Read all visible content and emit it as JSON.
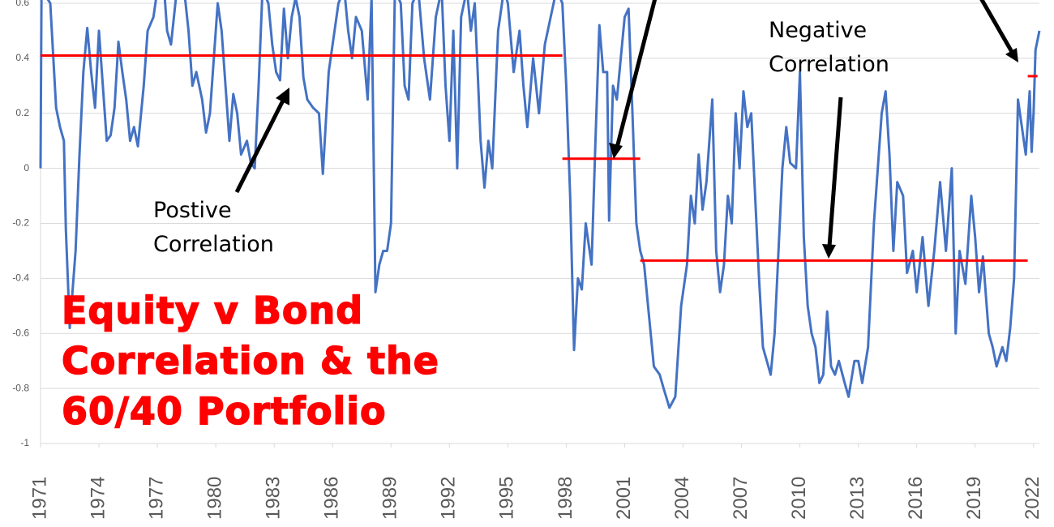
{
  "chart_data": {
    "type": "line",
    "title": "Equity v Bond Correlation & the 60/40 Portfolio",
    "annotations": [
      [
        "Postive",
        "Correlation"
      ],
      [
        "Negative",
        "Correlation"
      ]
    ],
    "xlim": [
      1971,
      2022.3
    ],
    "xticks": [
      1971,
      1974,
      1977,
      1980,
      1983,
      1986,
      1989,
      1992,
      1995,
      1998,
      2001,
      2004,
      2007,
      2010,
      2013,
      2016,
      2019,
      2022
    ],
    "ylim": [
      -1,
      0.6
    ],
    "yticks": [
      -1,
      -0.8,
      -0.6,
      -0.4,
      -0.2,
      0,
      0.2,
      0.4,
      0.6
    ],
    "grid": true,
    "series": [
      {
        "color": "#4472c4",
        "x": [
          1971.0,
          1971.05,
          1971.5,
          1971.8,
          1972.0,
          1972.2,
          1972.3,
          1972.5,
          1972.8,
          1973.0,
          1973.2,
          1973.4,
          1973.6,
          1973.8,
          1974.0,
          1974.2,
          1974.4,
          1974.6,
          1974.8,
          1975.0,
          1975.2,
          1975.4,
          1975.6,
          1975.8,
          1976.0,
          1976.3,
          1976.5,
          1976.8,
          1977.0,
          1977.3,
          1977.5,
          1977.7,
          1978.0,
          1978.3,
          1978.6,
          1978.8,
          1979.0,
          1979.3,
          1979.5,
          1979.7,
          1979.9,
          1980.1,
          1980.3,
          1980.5,
          1980.7,
          1980.9,
          1981.1,
          1981.3,
          1981.6,
          1981.8,
          1982.0,
          1982.2,
          1982.4,
          1982.7,
          1982.9,
          1983.1,
          1983.3,
          1983.5,
          1983.7,
          1983.9,
          1984.1,
          1984.3,
          1984.5,
          1984.7,
          1985.0,
          1985.3,
          1985.5,
          1985.8,
          1986.0,
          1986.3,
          1986.6,
          1986.8,
          1987.0,
          1987.2,
          1987.5,
          1987.8,
          1988.0,
          1988.2,
          1988.4,
          1988.6,
          1988.8,
          1989.0,
          1989.2,
          1989.5,
          1989.7,
          1989.9,
          1990.1,
          1990.4,
          1990.7,
          1991.0,
          1991.3,
          1991.6,
          1991.8,
          1992.0,
          1992.2,
          1992.4,
          1992.6,
          1992.9,
          1993.1,
          1993.3,
          1993.6,
          1993.8,
          1994.0,
          1994.2,
          1994.5,
          1994.8,
          1995.0,
          1995.3,
          1995.6,
          1995.8,
          1996.0,
          1996.3,
          1996.6,
          1996.9,
          1997.2,
          1997.5,
          1997.8,
          1998.0,
          1998.2,
          1998.4,
          1998.6,
          1998.8,
          1999.0,
          1999.3,
          1999.5,
          1999.7,
          1999.9,
          2000.1,
          2000.2,
          2000.4,
          2000.6,
          2000.8,
          2001.0,
          2001.2,
          2001.4,
          2001.6,
          2001.8,
          2002.0,
          2002.2,
          2002.5,
          2002.8,
          2003.0,
          2003.3,
          2003.6,
          2003.9,
          2004.2,
          2004.4,
          2004.6,
          2004.8,
          2005.0,
          2005.2,
          2005.5,
          2005.7,
          2005.9,
          2006.1,
          2006.3,
          2006.5,
          2006.7,
          2006.9,
          2007.1,
          2007.3,
          2007.5,
          2007.7,
          2007.9,
          2008.1,
          2008.3,
          2008.5,
          2008.7,
          2008.9,
          2009.1,
          2009.3,
          2009.5,
          2009.8,
          2010.0,
          2010.2,
          2010.4,
          2010.6,
          2010.8,
          2011.0,
          2011.2,
          2011.4,
          2011.6,
          2011.8,
          2012.0,
          2012.3,
          2012.5,
          2012.8,
          2013.0,
          2013.2,
          2013.5,
          2013.8,
          2014.0,
          2014.2,
          2014.4,
          2014.6,
          2014.8,
          2015.0,
          2015.3,
          2015.5,
          2015.8,
          2016.0,
          2016.3,
          2016.6,
          2016.9,
          2017.2,
          2017.5,
          2017.8,
          2018.0,
          2018.2,
          2018.5,
          2018.8,
          2019.0,
          2019.2,
          2019.4,
          2019.7,
          2019.9,
          2020.1,
          2020.4,
          2020.6,
          2020.8,
          2021.0,
          2021.2,
          2021.4,
          2021.6,
          2021.8,
          2021.9,
          2022.0,
          2022.1,
          2022.3
        ],
        "values": [
          0,
          0.65,
          0.6,
          0.22,
          0.15,
          0.1,
          -0.22,
          -0.58,
          -0.3,
          0.05,
          0.35,
          0.51,
          0.35,
          0.22,
          0.5,
          0.3,
          0.1,
          0.12,
          0.22,
          0.46,
          0.35,
          0.25,
          0.1,
          0.15,
          0.08,
          0.3,
          0.5,
          0.55,
          0.65,
          0.7,
          0.5,
          0.45,
          0.65,
          0.7,
          0.5,
          0.3,
          0.35,
          0.25,
          0.13,
          0.2,
          0.4,
          0.6,
          0.5,
          0.3,
          0.1,
          0.27,
          0.2,
          0.05,
          0.1,
          0.02,
          0,
          0.3,
          0.65,
          0.6,
          0.45,
          0.35,
          0.32,
          0.58,
          0.4,
          0.55,
          0.62,
          0.55,
          0.33,
          0.25,
          0.22,
          0.2,
          -0.02,
          0.35,
          0.45,
          0.6,
          0.65,
          0.5,
          0.4,
          0.55,
          0.5,
          0.25,
          0.62,
          -0.45,
          -0.35,
          -0.3,
          -0.3,
          -0.2,
          0.65,
          0.6,
          0.3,
          0.25,
          0.6,
          0.65,
          0.4,
          0.25,
          0.55,
          0.65,
          0.3,
          0.1,
          0.5,
          0,
          0.55,
          0.65,
          0.5,
          0.6,
          0.1,
          -0.07,
          0.1,
          0,
          0.5,
          0.65,
          0.6,
          0.35,
          0.5,
          0.3,
          0.15,
          0.4,
          0.2,
          0.45,
          0.55,
          0.65,
          0.6,
          0.3,
          -0.1,
          -0.66,
          -0.4,
          -0.44,
          -0.2,
          -0.35,
          0.1,
          0.52,
          0.35,
          0.35,
          -0.19,
          0.3,
          0.25,
          0.4,
          0.55,
          0.58,
          0.2,
          -0.2,
          -0.3,
          -0.35,
          -0.5,
          -0.72,
          -0.75,
          -0.8,
          -0.87,
          -0.83,
          -0.5,
          -0.35,
          -0.1,
          -0.2,
          0.05,
          -0.15,
          -0.05,
          0.25,
          -0.3,
          -0.45,
          -0.35,
          -0.1,
          -0.2,
          0.2,
          0,
          0.28,
          0.15,
          0.2,
          -0.1,
          -0.4,
          -0.65,
          -0.7,
          -0.75,
          -0.6,
          -0.3,
          0,
          0.15,
          0.02,
          0,
          0.35,
          -0.25,
          -0.5,
          -0.6,
          -0.65,
          -0.78,
          -0.75,
          -0.52,
          -0.72,
          -0.75,
          -0.7,
          -0.78,
          -0.83,
          -0.7,
          -0.7,
          -0.78,
          -0.65,
          -0.2,
          0,
          0.2,
          0.28,
          0.05,
          -0.3,
          -0.05,
          -0.1,
          -0.38,
          -0.3,
          -0.45,
          -0.25,
          -0.5,
          -0.3,
          -0.05,
          -0.3,
          0,
          -0.6,
          -0.3,
          -0.42,
          -0.1,
          -0.25,
          -0.45,
          -0.32,
          -0.6,
          -0.65,
          -0.72,
          -0.65,
          -0.7,
          -0.58,
          -0.4,
          0.25,
          0.15,
          0.05,
          0.28,
          0.06,
          0.2,
          0.43,
          0.5
        ]
      }
    ],
    "reference_lines": [
      {
        "color": "#ff0000",
        "x": [
          1971,
          1997.8
        ],
        "value": 0.41
      },
      {
        "color": "#ff0000",
        "x": [
          1997.8,
          2001.8
        ],
        "value": 0.035
      },
      {
        "color": "#ff0000",
        "x": [
          2001.8,
          2021.7
        ],
        "value": -0.335
      },
      {
        "color": "#ff0000",
        "x": [
          2021.7,
          2022.2
        ],
        "value": 0.335
      }
    ]
  }
}
